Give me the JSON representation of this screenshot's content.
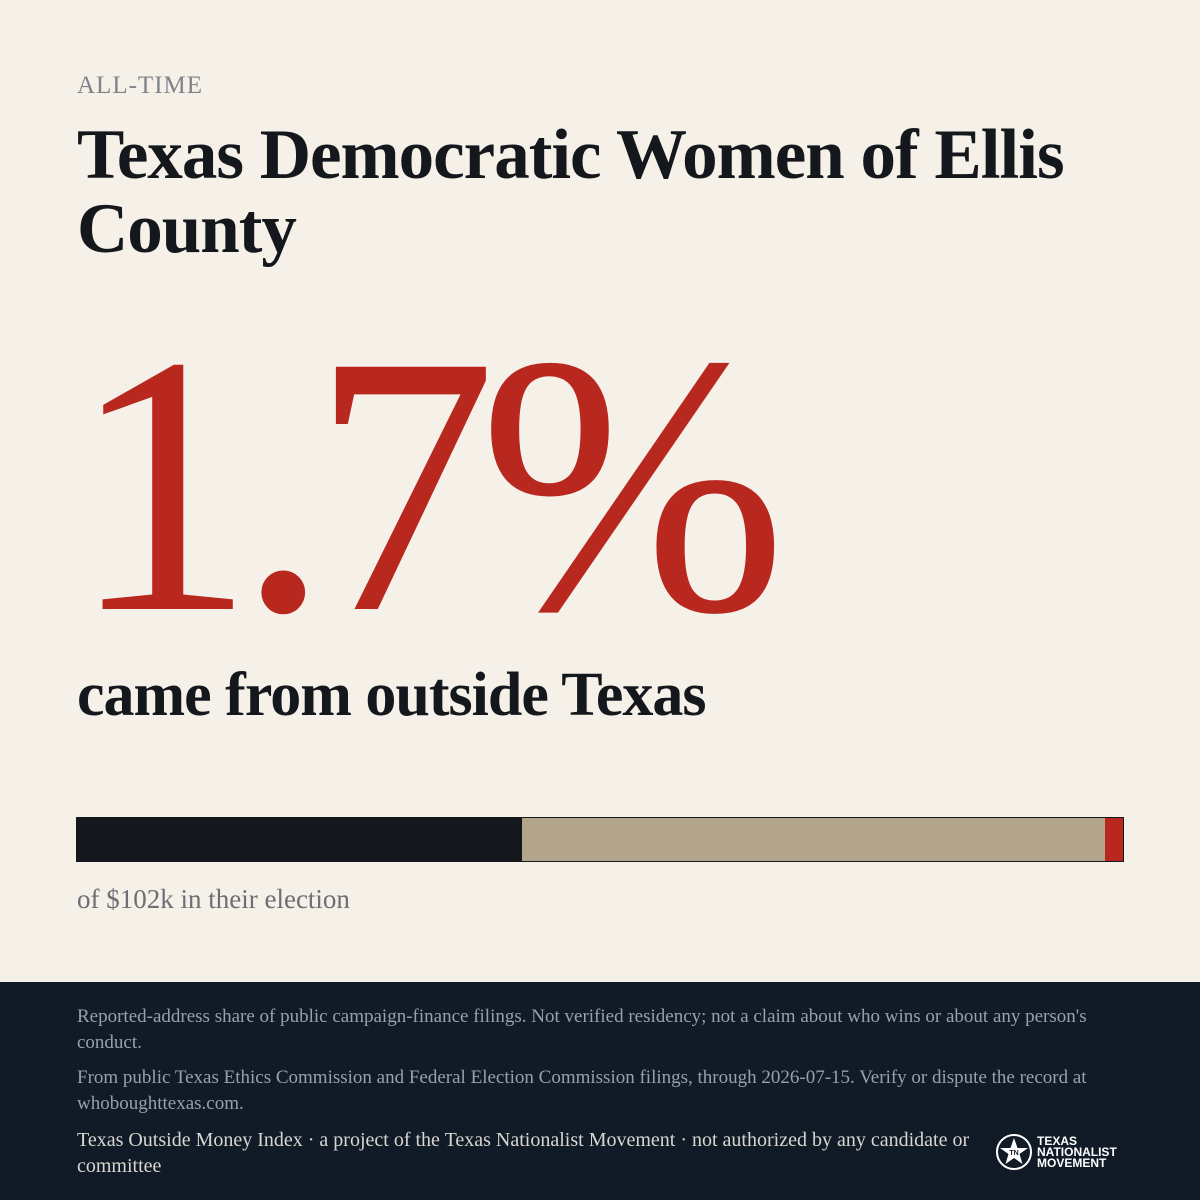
{
  "kicker": "ALL-TIME",
  "title": "Texas Democratic Women of Ellis County",
  "share": {
    "value": 1.7,
    "label": "1.7%"
  },
  "share_caption": "came from outside Texas",
  "bar": {
    "segments": [
      {
        "value": 42.5,
        "color": "#14171b"
      },
      {
        "value": 55.8,
        "color": "#b2a58b"
      },
      {
        "value": 1.7,
        "color": "#b8281f"
      }
    ]
  },
  "bar_caption": "of $102k in their election",
  "footer": {
    "disclaimer": "Reported-address share of public campaign-finance filings. Not verified residency; not a claim about who wins or about any person's conduct.",
    "source": "From public Texas Ethics Commission and Federal Election Commission filings, through 2026-07-15. Verify or dispute the record at whoboughttexas.com.",
    "credit": "Texas Outside Money Index · a project of the Texas Nationalist Movement · not authorized by any candidate or committee",
    "logo_text": [
      "TEXAS",
      "NATIONALIST",
      "MOVEMENT"
    ]
  }
}
